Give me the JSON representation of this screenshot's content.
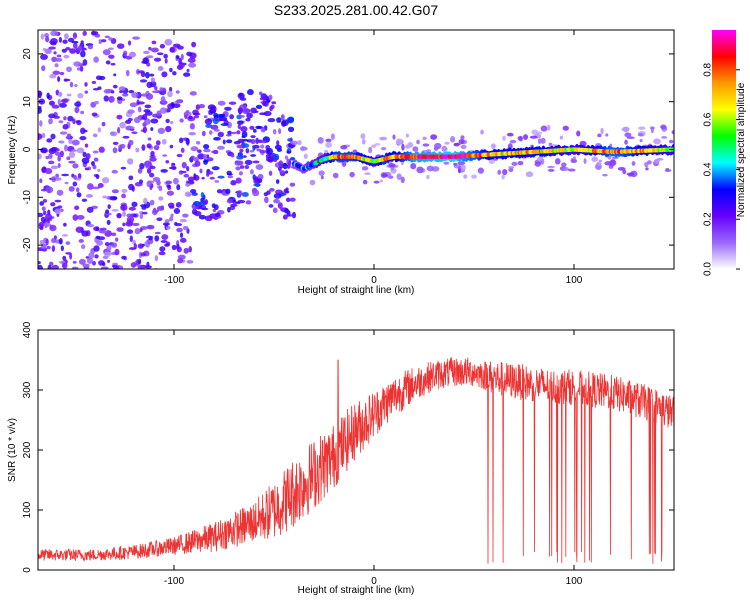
{
  "title": "S233.2025.281.00.42.G07",
  "chart_data": [
    {
      "type": "heatmap",
      "xlabel": "Height of straight line (km)",
      "ylabel": "Frequency (Hz)",
      "xlim": [
        -168,
        150
      ],
      "ylim": [
        -25,
        25
      ],
      "xticks": [
        "-100",
        "0",
        "100"
      ],
      "yticks": [
        "-20",
        "-10",
        "0",
        "10",
        "20"
      ],
      "colorbar": {
        "label": "Normalized spectral amplitude",
        "range": [
          0,
          1
        ],
        "ticks": [
          "0.0",
          "0.2",
          "0.4",
          "0.6",
          "0.8"
        ],
        "colors": [
          "#ffffff",
          "#9966ff",
          "#6600ff",
          "#0000ff",
          "#00ffff",
          "#00ff00",
          "#ffff00",
          "#ff9900",
          "#ff0000",
          "#ff00ff"
        ]
      },
      "ridge": {
        "x": [
          -168,
          -120,
          -80,
          -60,
          -45,
          -35,
          -25,
          -20,
          -10,
          0,
          5,
          10,
          20,
          40,
          60,
          80,
          100,
          120,
          150
        ],
        "freq": [
          0,
          -1,
          -3,
          1,
          -2,
          -4,
          -2,
          -1.5,
          -1.5,
          -2.5,
          -2,
          -1.5,
          -1.5,
          -1.5,
          -1,
          -0.5,
          0,
          -0.5,
          0
        ],
        "amplitude": [
          0.1,
          0.15,
          0.2,
          0.3,
          0.3,
          0.35,
          0.5,
          0.8,
          0.8,
          0.6,
          0.8,
          0.7,
          0.9,
          0.95,
          0.7,
          0.75,
          0.6,
          0.85,
          0.6
        ]
      }
    },
    {
      "type": "line",
      "xlabel": "Height of straight line (km)",
      "ylabel": "SNR (10 * v/v)",
      "xlim": [
        -168,
        150
      ],
      "ylim": [
        0,
        400
      ],
      "xticks": [
        "-100",
        "0",
        "100"
      ],
      "yticks": [
        "0",
        "100",
        "200",
        "300",
        "400"
      ],
      "color": "#ee3333",
      "series": [
        {
          "name": "SNR",
          "x": [
            -168,
            -140,
            -120,
            -100,
            -80,
            -60,
            -50,
            -40,
            -30,
            -20,
            -10,
            0,
            10,
            20,
            30,
            40,
            50,
            55,
            60,
            70,
            80,
            90,
            100,
            110,
            120,
            130,
            140,
            150
          ],
          "values": [
            25,
            25,
            30,
            40,
            55,
            80,
            100,
            130,
            160,
            190,
            230,
            260,
            290,
            310,
            325,
            330,
            330,
            325,
            320,
            315,
            310,
            305,
            305,
            300,
            295,
            285,
            275,
            260
          ],
          "spread": [
            10,
            10,
            12,
            15,
            25,
            35,
            50,
            60,
            60,
            55,
            50,
            40,
            35,
            30,
            25,
            25,
            25,
            25,
            30,
            30,
            30,
            30,
            30,
            30,
            30,
            30,
            30,
            30
          ]
        }
      ],
      "dropout_range": [
        57,
        150
      ],
      "spike": {
        "x": -18,
        "value": 350
      }
    }
  ]
}
